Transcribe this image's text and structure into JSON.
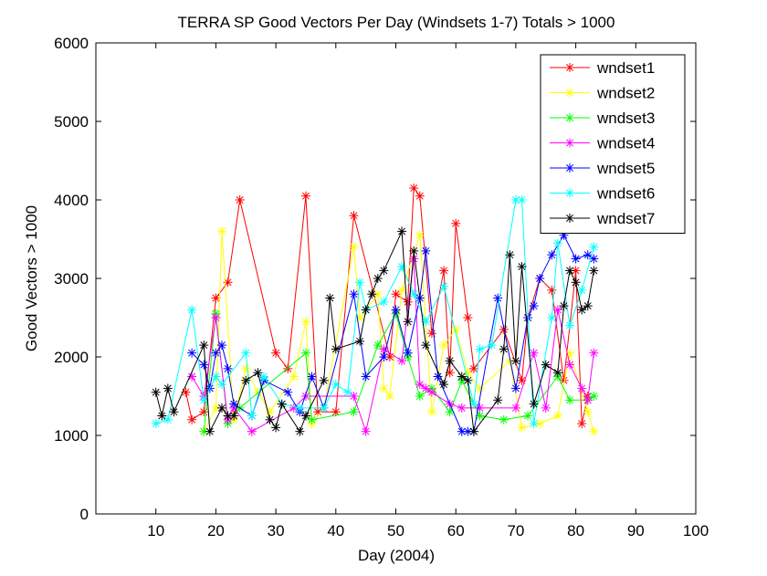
{
  "chart_data": {
    "type": "line",
    "title": "TERRA SP Good Vectors Per Day (Windsets 1-7) Totals > 1000",
    "xlabel": "Day (2004)",
    "ylabel": "Good Vectors > 1000",
    "xlim": [
      0,
      100
    ],
    "ylim": [
      0,
      6000
    ],
    "xticks": [
      "10",
      "20",
      "30",
      "40",
      "50",
      "60",
      "70",
      "80",
      "90",
      "100"
    ],
    "yticks": [
      "0",
      "1000",
      "2000",
      "3000",
      "4000",
      "5000",
      "6000"
    ],
    "grid": false,
    "legend_position": "top-right",
    "marker": "asterisk",
    "series": [
      {
        "name": "wndset1",
        "color": "#ff0000",
        "x": [
          15,
          16,
          18,
          20,
          22,
          24,
          30,
          32,
          35,
          37,
          40,
          43,
          49,
          50,
          52,
          53,
          54,
          56,
          58,
          59,
          60,
          62,
          63,
          68,
          71,
          72,
          74,
          76,
          78,
          80,
          81,
          82
        ],
        "y": [
          1550,
          1200,
          1300,
          2750,
          2950,
          4000,
          2050,
          1850,
          4050,
          1300,
          1300,
          3800,
          2000,
          2800,
          2700,
          4150,
          4050,
          2300,
          3100,
          1800,
          3700,
          2500,
          1850,
          2350,
          1700,
          2500,
          3000,
          2850,
          1700,
          3100,
          1150,
          1500
        ]
      },
      {
        "name": "wndset2",
        "color": "#ffff00",
        "x": [
          18,
          20,
          21,
          23,
          25,
          27,
          29,
          33,
          35,
          36,
          38,
          43,
          44,
          47,
          48,
          49,
          51,
          54,
          56,
          58,
          60,
          62,
          64,
          69,
          71,
          74,
          77,
          79,
          82,
          83
        ],
        "y": [
          1050,
          1350,
          3600,
          1200,
          1850,
          1550,
          1300,
          1750,
          2450,
          1150,
          1350,
          3400,
          2500,
          2800,
          1600,
          1500,
          2850,
          3550,
          1300,
          2150,
          2350,
          1800,
          1600,
          1950,
          1100,
          1150,
          1250,
          2050,
          1300,
          1050
        ]
      },
      {
        "name": "wndset3",
        "color": "#00ff00",
        "x": [
          18,
          20,
          22,
          24,
          35,
          36,
          43,
          47,
          50,
          52,
          54,
          56,
          59,
          61,
          64,
          68,
          72,
          77,
          79,
          82,
          83
        ],
        "y": [
          1050,
          2550,
          1150,
          1350,
          2050,
          1200,
          1300,
          2150,
          2550,
          2000,
          1500,
          1600,
          1300,
          1700,
          1250,
          1200,
          1250,
          1750,
          1450,
          1450,
          1500
        ]
      },
      {
        "name": "wndset4",
        "color": "#ff00ff",
        "x": [
          16,
          18,
          20,
          22,
          23,
          26,
          33,
          35,
          43,
          45,
          48,
          51,
          53,
          54,
          55,
          56,
          59,
          61,
          64,
          70,
          73,
          75,
          77,
          79,
          81,
          82,
          83
        ],
        "y": [
          1750,
          1500,
          2500,
          1200,
          1350,
          1050,
          1350,
          1500,
          1500,
          1050,
          2100,
          1950,
          3250,
          1650,
          1600,
          1550,
          1400,
          1350,
          1350,
          1350,
          2050,
          1350,
          2600,
          1900,
          1600,
          1450,
          2050
        ]
      },
      {
        "name": "wndset5",
        "color": "#0000ff",
        "x": [
          16,
          18,
          19,
          20,
          21,
          22,
          23,
          26,
          28,
          32,
          34,
          36,
          38,
          43,
          45,
          48,
          50,
          52,
          54,
          55,
          57,
          61,
          62,
          63,
          67,
          70,
          72,
          73,
          74,
          76,
          78,
          80,
          82,
          83
        ],
        "y": [
          2050,
          1900,
          1600,
          2050,
          2150,
          1850,
          1400,
          1250,
          1700,
          1550,
          1300,
          1750,
          1350,
          2800,
          1750,
          2000,
          2600,
          2050,
          2750,
          3350,
          1750,
          1050,
          1050,
          1050,
          2750,
          1600,
          2500,
          2650,
          3000,
          3300,
          3550,
          3250,
          3300,
          3250
        ]
      },
      {
        "name": "wndset6",
        "color": "#00ffff",
        "x": [
          10,
          12,
          16,
          18,
          20,
          21,
          25,
          26,
          28,
          31,
          34,
          38,
          40,
          42,
          44,
          45,
          48,
          51,
          53,
          55,
          58,
          63,
          64,
          66,
          70,
          71,
          73,
          76,
          77,
          79,
          81,
          83
        ],
        "y": [
          1150,
          1200,
          2600,
          1450,
          1750,
          1650,
          2050,
          1250,
          1750,
          1400,
          1350,
          1350,
          1650,
          1550,
          2950,
          2600,
          2700,
          3150,
          2800,
          2450,
          2900,
          1400,
          2100,
          2150,
          4000,
          4000,
          1150,
          2500,
          3450,
          2400,
          2850,
          3400
        ]
      },
      {
        "name": "wndset7",
        "color": "#000000",
        "x": [
          10,
          11,
          12,
          13,
          18,
          19,
          21,
          22,
          23,
          25,
          27,
          29,
          30,
          31,
          34,
          35,
          38,
          39,
          40,
          44,
          45,
          46,
          47,
          48,
          51,
          52,
          53,
          55,
          58,
          59,
          61,
          62,
          63,
          67,
          68,
          69,
          70,
          71,
          73,
          75,
          77,
          78,
          79,
          80,
          81,
          82,
          83
        ],
        "y": [
          1550,
          1250,
          1600,
          1300,
          2150,
          1050,
          1350,
          1250,
          1250,
          1700,
          1800,
          1200,
          1100,
          1400,
          1050,
          1250,
          1700,
          2750,
          2100,
          2200,
          2600,
          2800,
          3000,
          3100,
          3600,
          2450,
          3350,
          2150,
          1650,
          1950,
          1750,
          1700,
          1050,
          1450,
          2100,
          3300,
          1950,
          3150,
          1400,
          1900,
          1800,
          2650,
          3100,
          2950,
          2600,
          2650,
          3100
        ]
      }
    ]
  }
}
